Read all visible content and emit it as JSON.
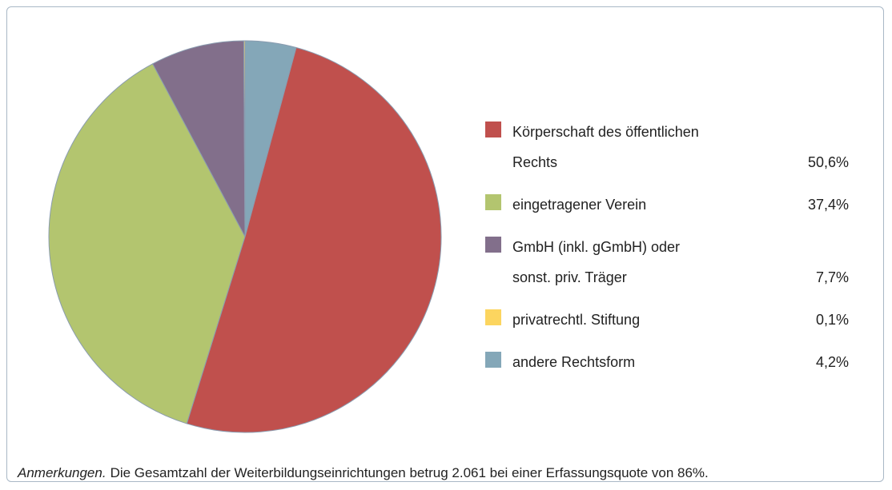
{
  "chart_data": {
    "type": "pie",
    "categories": [
      "Körperschaft des öffentlichen\nRechts",
      "eingetragener Verein",
      "GmbH (inkl. gGmbH) oder\nsonst. priv. Träger",
      "privatrechtl. Stiftung",
      "andere Rechtsform"
    ],
    "values": [
      50.6,
      37.4,
      7.7,
      0.1,
      4.2
    ],
    "value_labels": [
      "50,6%",
      "37,4%",
      "7,7%",
      "0,1%",
      "4,2%"
    ],
    "colors": [
      "#c0504d",
      "#b3c56f",
      "#826f8b",
      "#fcd55f",
      "#84a7b8"
    ],
    "legend": "right",
    "note_label": "Anmerkungen.",
    "note": "Die Gesamtzahl der Weiterbildungseinrichtungen betrug 2.061 bei einer Erfassungsquote von 86%."
  }
}
